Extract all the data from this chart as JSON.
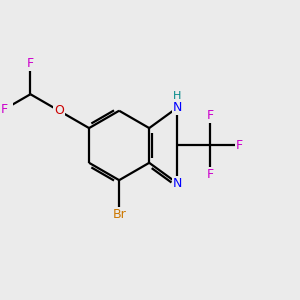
{
  "background_color": "#ebebeb",
  "bond_color": "#000000",
  "atom_colors": {
    "N": "#0000ff",
    "O": "#cc0000",
    "F": "#cc00cc",
    "Br": "#cc7700",
    "H": "#008888"
  },
  "figsize": [
    3.0,
    3.0
  ],
  "dpi": 100,
  "bond_lw": 1.6,
  "font_size": 9.0
}
